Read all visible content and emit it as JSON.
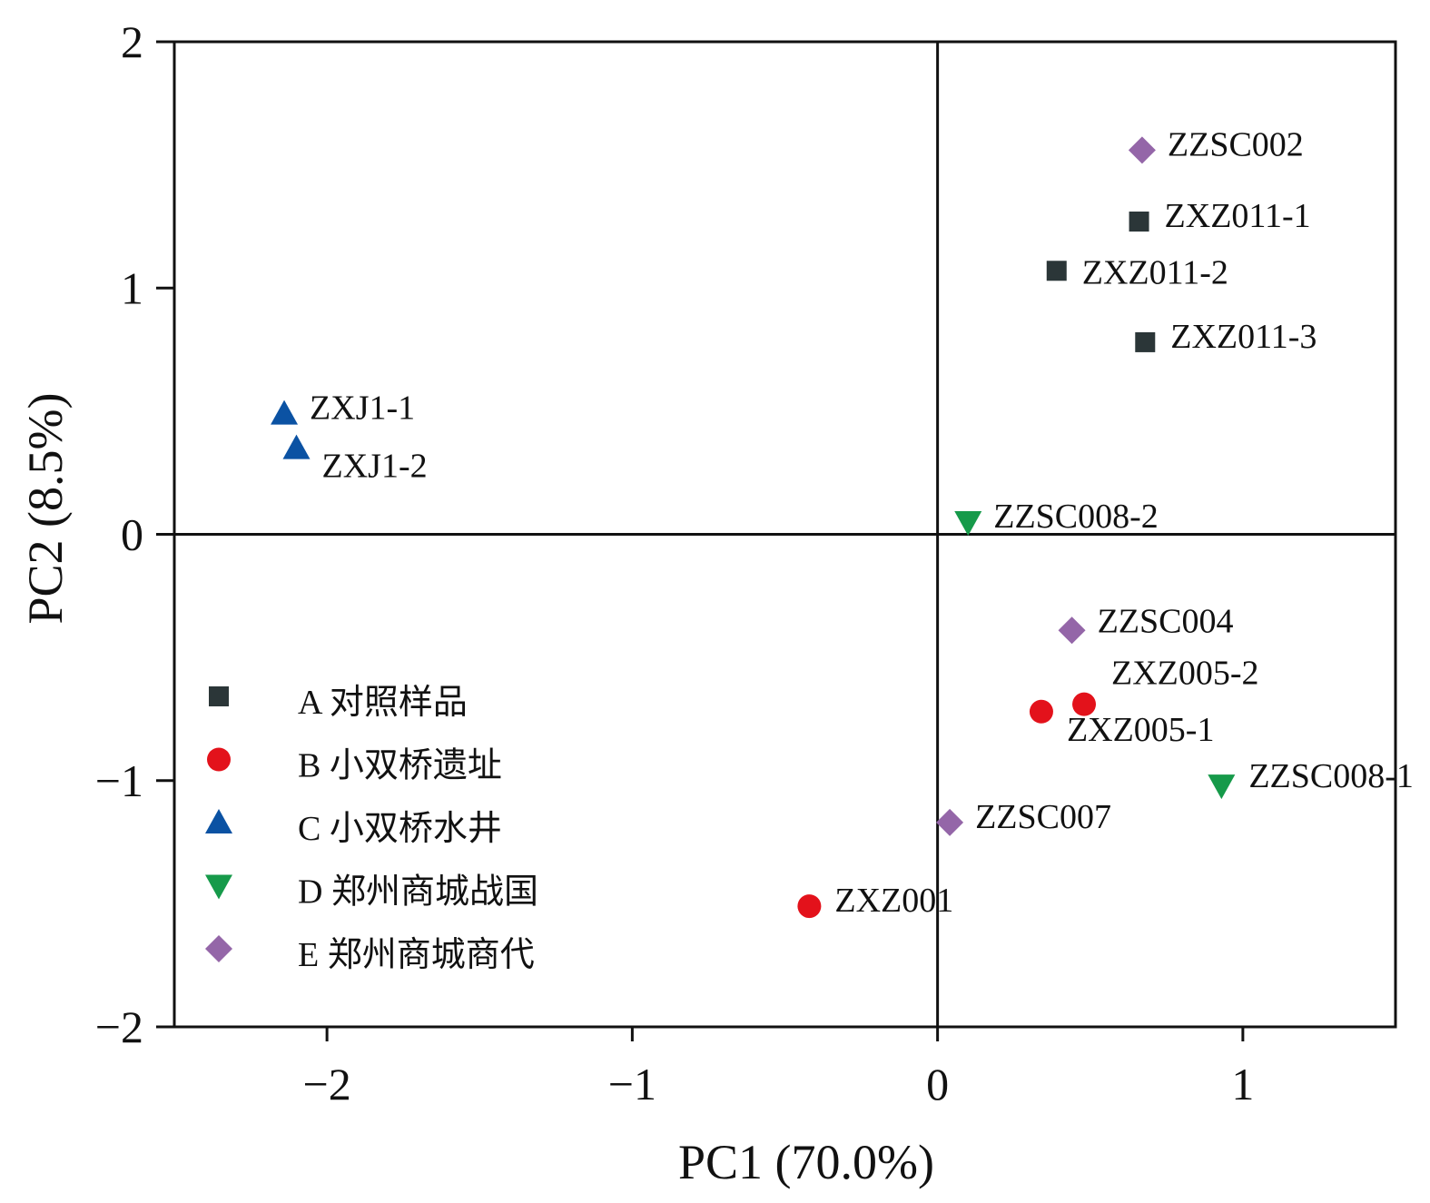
{
  "chart_data": {
    "type": "scatter",
    "xlabel": "PC1 (70.0%)",
    "ylabel": "PC2 (8.5%)",
    "xlim": [
      -2.5,
      1.5
    ],
    "ylim": [
      -2,
      2
    ],
    "x_ticks": [
      -2,
      -1,
      0,
      1
    ],
    "x_tick_labels": [
      "−2",
      "−1",
      "0",
      "1"
    ],
    "y_ticks": [
      -2,
      -1,
      0,
      1,
      2
    ],
    "y_tick_labels": [
      "−2",
      "−1",
      "0",
      "1",
      "2"
    ],
    "reference_lines": {
      "x": 0,
      "y": 0
    },
    "legend_position": "lower-left",
    "series": [
      {
        "name": "A 对照样品",
        "marker": "square",
        "color": "#2b3638",
        "points": [
          {
            "label": "ZXZ011-1",
            "x": 0.66,
            "y": 1.27
          },
          {
            "label": "ZXZ011-2",
            "x": 0.39,
            "y": 1.07
          },
          {
            "label": "ZXZ011-3",
            "x": 0.68,
            "y": 0.78
          }
        ]
      },
      {
        "name": "B 小双桥遗址",
        "marker": "circle",
        "color": "#e3121b",
        "points": [
          {
            "label": "ZXZ005-2",
            "x": 0.48,
            "y": -0.69
          },
          {
            "label": "ZXZ005-1",
            "x": 0.34,
            "y": -0.72
          },
          {
            "label": "ZXZ001",
            "x": -0.42,
            "y": -1.51
          }
        ]
      },
      {
        "name": "C 小双桥水井",
        "marker": "triangle-up",
        "color": "#0b52a3",
        "points": [
          {
            "label": "ZXJ1-1",
            "x": -2.14,
            "y": 0.49
          },
          {
            "label": "ZXJ1-2",
            "x": -2.1,
            "y": 0.35
          }
        ]
      },
      {
        "name": "D 郑州商城战国",
        "marker": "triangle-down",
        "color": "#169a4a",
        "points": [
          {
            "label": "ZZSC008-2",
            "x": 0.1,
            "y": 0.05
          },
          {
            "label": "ZZSC008-1",
            "x": 0.93,
            "y": -1.02
          }
        ]
      },
      {
        "name": "E 郑州商城商代",
        "marker": "diamond",
        "color": "#9466a8",
        "points": [
          {
            "label": "ZZSC002",
            "x": 0.67,
            "y": 1.56
          },
          {
            "label": "ZZSC004",
            "x": 0.44,
            "y": -0.39
          },
          {
            "label": "ZZSC007",
            "x": 0.04,
            "y": -1.17
          }
        ]
      }
    ]
  }
}
